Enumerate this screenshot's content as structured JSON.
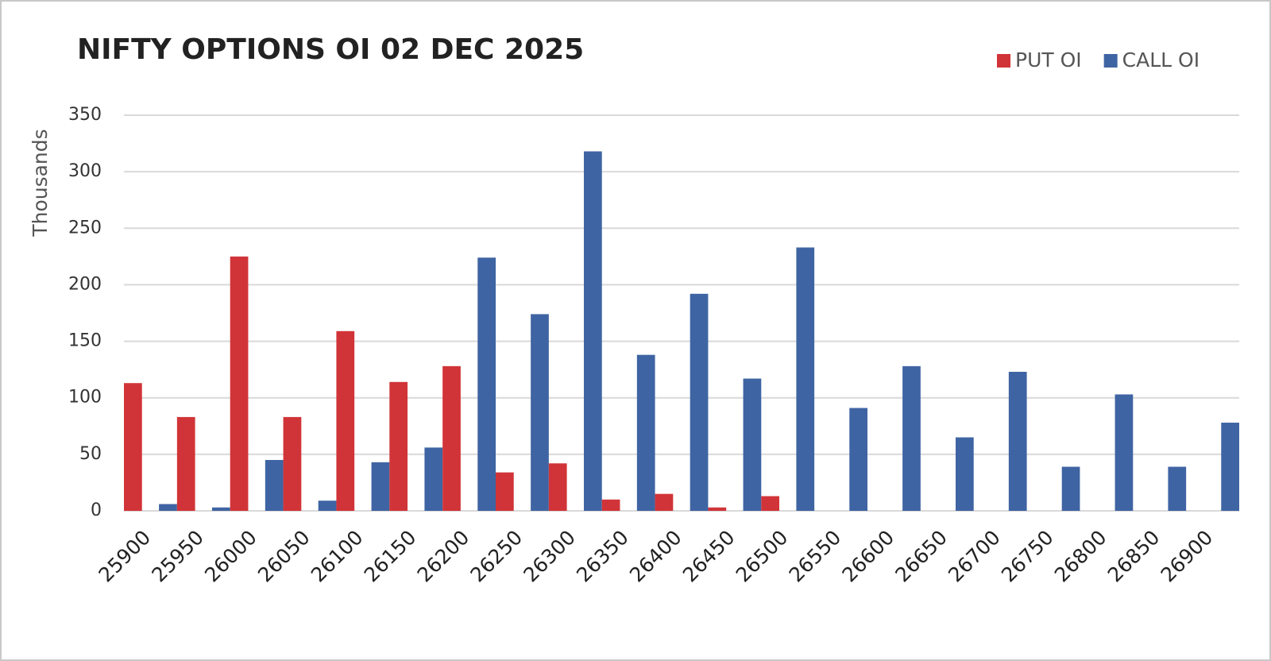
{
  "chart_data": {
    "type": "bar",
    "title": "NIFTY OPTIONS OI 02 DEC 2025",
    "y_label": "Thousands",
    "categories": [
      "25900",
      "25950",
      "26000",
      "26050",
      "26100",
      "26150",
      "26200",
      "26250",
      "26300",
      "26350",
      "26400",
      "26450",
      "26500",
      "26550",
      "26600",
      "26650",
      "26700",
      "26750",
      "26800",
      "26850",
      "26900",
      null
    ],
    "series": [
      {
        "name": "PUT OI",
        "color": "#d13438",
        "values": [
          113,
          83,
          225,
          83,
          159,
          114,
          128,
          34,
          42,
          10,
          15,
          3,
          13,
          0,
          0,
          0,
          0,
          0,
          0,
          0,
          0,
          0
        ]
      },
      {
        "name": "CALL OI",
        "color": "#3f64a3",
        "values": [
          0,
          6,
          3,
          45,
          9,
          43,
          56,
          224,
          174,
          318,
          138,
          192,
          117,
          233,
          91,
          128,
          65,
          123,
          39,
          103,
          39,
          78
        ]
      }
    ],
    "ylim": [
      0,
      350
    ],
    "yticks": [
      0,
      50,
      100,
      150,
      200,
      250,
      300,
      350
    ],
    "grid": true,
    "legend": "top-right"
  }
}
